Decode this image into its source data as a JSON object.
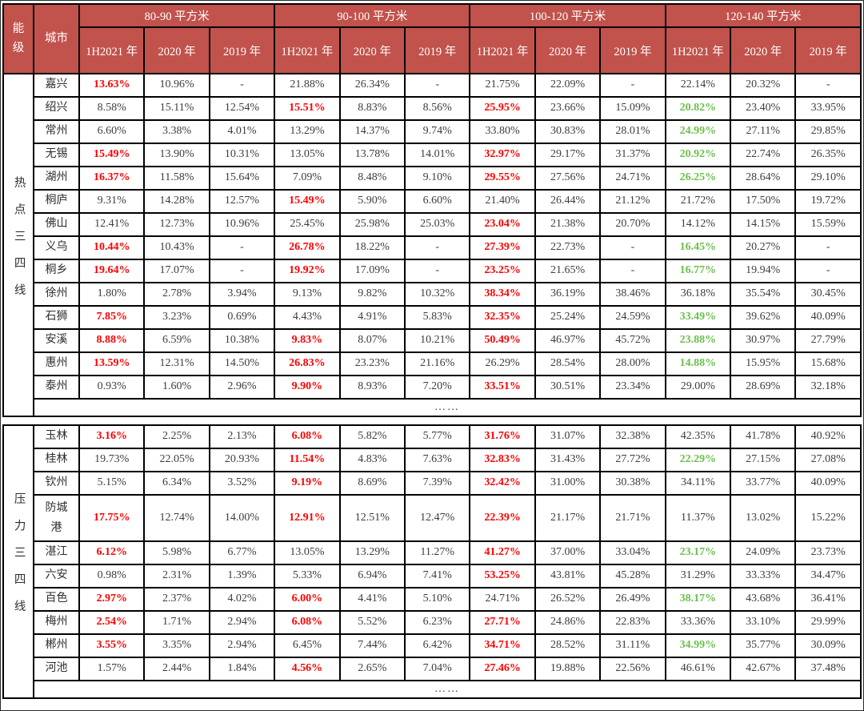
{
  "table": {
    "corner": {
      "tier": "能级",
      "city": "城市"
    },
    "groups": [
      "80-90 平方米",
      "90-100 平方米",
      "100-120 平方米",
      "120-140 平方米"
    ],
    "years": [
      "1H2021 年",
      "2020 年",
      "2019 年"
    ],
    "colors": {
      "header_bg": "#C1524C",
      "header_text": "#FFFFFF",
      "highlight_red": "#FE0000",
      "highlight_green": "#6CBE4B",
      "body_text": "#3D3D3D",
      "border": "#000000"
    },
    "sections": [
      {
        "tier": "热点三四线",
        "ellipsis": "……",
        "rows": [
          {
            "city": "嘉兴",
            "values": [
              "13.63%",
              "10.96%",
              "-",
              "21.88%",
              "26.34%",
              "-",
              "21.75%",
              "22.09%",
              "-",
              "22.14%",
              "20.32%",
              "-"
            ],
            "flags": [
              "r",
              "",
              "",
              "",
              "",
              "",
              "",
              "",
              "",
              "",
              "",
              ""
            ]
          },
          {
            "city": "绍兴",
            "values": [
              "8.58%",
              "15.11%",
              "12.54%",
              "15.51%",
              "8.83%",
              "8.56%",
              "25.95%",
              "23.66%",
              "15.09%",
              "20.82%",
              "23.40%",
              "33.95%"
            ],
            "flags": [
              "",
              "",
              "",
              "r",
              "",
              "",
              "r",
              "",
              "",
              "g",
              "",
              ""
            ]
          },
          {
            "city": "常州",
            "values": [
              "6.60%",
              "3.38%",
              "4.01%",
              "13.29%",
              "14.37%",
              "9.74%",
              "33.80%",
              "30.83%",
              "28.01%",
              "24.99%",
              "27.11%",
              "29.85%"
            ],
            "flags": [
              "",
              "",
              "",
              "",
              "",
              "",
              "",
              "",
              "",
              "g",
              "",
              ""
            ]
          },
          {
            "city": "无锡",
            "values": [
              "15.49%",
              "13.90%",
              "10.31%",
              "13.05%",
              "13.78%",
              "14.01%",
              "32.97%",
              "29.17%",
              "31.37%",
              "20.92%",
              "22.74%",
              "26.35%"
            ],
            "flags": [
              "r",
              "",
              "",
              "",
              "",
              "",
              "r",
              "",
              "",
              "g",
              "",
              ""
            ]
          },
          {
            "city": "湖州",
            "values": [
              "16.37%",
              "11.58%",
              "15.64%",
              "7.09%",
              "8.48%",
              "9.10%",
              "29.55%",
              "27.56%",
              "24.71%",
              "26.25%",
              "28.64%",
              "29.10%"
            ],
            "flags": [
              "r",
              "",
              "",
              "",
              "",
              "",
              "r",
              "",
              "",
              "g",
              "",
              ""
            ]
          },
          {
            "city": "桐庐",
            "values": [
              "9.31%",
              "14.28%",
              "12.57%",
              "15.49%",
              "5.90%",
              "6.60%",
              "21.40%",
              "26.44%",
              "21.12%",
              "21.72%",
              "17.50%",
              "19.72%"
            ],
            "flags": [
              "",
              "",
              "",
              "r",
              "",
              "",
              "",
              "",
              "",
              "",
              "",
              ""
            ]
          },
          {
            "city": "佛山",
            "values": [
              "12.41%",
              "12.73%",
              "10.96%",
              "25.45%",
              "25.98%",
              "25.03%",
              "23.04%",
              "21.38%",
              "20.70%",
              "14.12%",
              "14.15%",
              "15.59%"
            ],
            "flags": [
              "",
              "",
              "",
              "",
              "",
              "",
              "r",
              "",
              "",
              "",
              "",
              ""
            ]
          },
          {
            "city": "义乌",
            "values": [
              "10.44%",
              "10.43%",
              "-",
              "26.78%",
              "18.22%",
              "-",
              "27.39%",
              "22.73%",
              "-",
              "16.45%",
              "20.27%",
              "-"
            ],
            "flags": [
              "r",
              "",
              "",
              "r",
              "",
              "",
              "r",
              "",
              "",
              "g",
              "",
              ""
            ]
          },
          {
            "city": "桐乡",
            "values": [
              "19.64%",
              "17.07%",
              "-",
              "19.92%",
              "17.09%",
              "-",
              "23.25%",
              "21.65%",
              "-",
              "16.77%",
              "19.94%",
              "-"
            ],
            "flags": [
              "r",
              "",
              "",
              "r",
              "",
              "",
              "r",
              "",
              "",
              "g",
              "",
              ""
            ]
          },
          {
            "city": "徐州",
            "values": [
              "1.80%",
              "2.78%",
              "3.94%",
              "9.13%",
              "9.82%",
              "10.32%",
              "38.34%",
              "36.19%",
              "38.46%",
              "36.18%",
              "35.54%",
              "30.45%"
            ],
            "flags": [
              "",
              "",
              "",
              "",
              "",
              "",
              "r",
              "",
              "",
              "",
              "",
              ""
            ]
          },
          {
            "city": "石狮",
            "values": [
              "7.85%",
              "3.23%",
              "0.69%",
              "4.43%",
              "4.91%",
              "5.83%",
              "32.35%",
              "25.24%",
              "24.59%",
              "33.49%",
              "39.62%",
              "40.09%"
            ],
            "flags": [
              "r",
              "",
              "",
              "",
              "",
              "",
              "r",
              "",
              "",
              "g",
              "",
              ""
            ]
          },
          {
            "city": "安溪",
            "values": [
              "8.88%",
              "6.59%",
              "10.38%",
              "9.83%",
              "8.07%",
              "10.21%",
              "50.49%",
              "46.97%",
              "45.72%",
              "23.88%",
              "30.97%",
              "27.79%"
            ],
            "flags": [
              "r",
              "",
              "",
              "r",
              "",
              "",
              "r",
              "",
              "",
              "g",
              "",
              ""
            ]
          },
          {
            "city": "惠州",
            "values": [
              "13.59%",
              "12.31%",
              "14.50%",
              "26.83%",
              "23.23%",
              "21.16%",
              "26.29%",
              "28.54%",
              "28.00%",
              "14.88%",
              "15.95%",
              "15.68%"
            ],
            "flags": [
              "r",
              "",
              "",
              "r",
              "",
              "",
              "",
              "",
              "",
              "g",
              "",
              ""
            ]
          },
          {
            "city": "泰州",
            "values": [
              "0.93%",
              "1.60%",
              "2.96%",
              "9.90%",
              "8.93%",
              "7.20%",
              "33.51%",
              "30.51%",
              "23.34%",
              "29.00%",
              "28.69%",
              "32.18%"
            ],
            "flags": [
              "",
              "",
              "",
              "r",
              "",
              "",
              "r",
              "",
              "",
              "",
              "",
              ""
            ]
          }
        ]
      },
      {
        "tier": "压力三四线",
        "ellipsis": "……",
        "rows": [
          {
            "city": "玉林",
            "values": [
              "3.16%",
              "2.25%",
              "2.13%",
              "6.08%",
              "5.82%",
              "5.77%",
              "31.76%",
              "31.07%",
              "32.38%",
              "42.35%",
              "41.78%",
              "40.92%"
            ],
            "flags": [
              "r",
              "",
              "",
              "r",
              "",
              "",
              "r",
              "",
              "",
              "",
              "",
              ""
            ]
          },
          {
            "city": "桂林",
            "values": [
              "19.73%",
              "22.05%",
              "20.93%",
              "11.54%",
              "4.83%",
              "7.63%",
              "32.83%",
              "31.43%",
              "27.72%",
              "22.29%",
              "27.15%",
              "27.08%"
            ],
            "flags": [
              "",
              "",
              "",
              "r",
              "",
              "",
              "r",
              "",
              "",
              "g",
              "",
              ""
            ]
          },
          {
            "city": "钦州",
            "values": [
              "5.15%",
              "6.34%",
              "3.52%",
              "9.19%",
              "8.69%",
              "7.39%",
              "32.42%",
              "31.00%",
              "30.38%",
              "34.11%",
              "33.77%",
              "40.09%"
            ],
            "flags": [
              "",
              "",
              "",
              "r",
              "",
              "",
              "r",
              "",
              "",
              "",
              "",
              ""
            ]
          },
          {
            "city": "防城港",
            "tall": true,
            "values": [
              "17.75%",
              "12.74%",
              "14.00%",
              "12.91%",
              "12.51%",
              "12.47%",
              "22.39%",
              "21.17%",
              "21.71%",
              "11.37%",
              "13.02%",
              "15.22%"
            ],
            "flags": [
              "r",
              "",
              "",
              "r",
              "",
              "",
              "r",
              "",
              "",
              "",
              "",
              ""
            ]
          },
          {
            "city": "湛江",
            "values": [
              "6.12%",
              "5.98%",
              "6.77%",
              "13.05%",
              "13.29%",
              "11.27%",
              "41.27%",
              "37.00%",
              "33.04%",
              "23.17%",
              "24.09%",
              "23.73%"
            ],
            "flags": [
              "r",
              "",
              "",
              "",
              "",
              "",
              "r",
              "",
              "",
              "g",
              "",
              ""
            ]
          },
          {
            "city": "六安",
            "values": [
              "0.98%",
              "2.31%",
              "1.39%",
              "5.33%",
              "6.94%",
              "7.41%",
              "53.25%",
              "43.81%",
              "45.28%",
              "31.29%",
              "33.33%",
              "34.47%"
            ],
            "flags": [
              "",
              "",
              "",
              "",
              "",
              "",
              "r",
              "",
              "",
              "",
              "",
              ""
            ]
          },
          {
            "city": "百色",
            "values": [
              "2.97%",
              "2.37%",
              "4.02%",
              "6.00%",
              "4.41%",
              "5.10%",
              "24.71%",
              "26.52%",
              "26.49%",
              "38.17%",
              "43.68%",
              "36.41%"
            ],
            "flags": [
              "r",
              "",
              "",
              "r",
              "",
              "",
              "",
              "",
              "",
              "g",
              "",
              ""
            ]
          },
          {
            "city": "梅州",
            "values": [
              "2.54%",
              "1.71%",
              "2.94%",
              "6.08%",
              "5.52%",
              "6.23%",
              "27.71%",
              "24.86%",
              "22.83%",
              "33.36%",
              "33.10%",
              "29.99%"
            ],
            "flags": [
              "r",
              "",
              "",
              "r",
              "",
              "",
              "r",
              "",
              "",
              "",
              "",
              ""
            ]
          },
          {
            "city": "郴州",
            "values": [
              "3.55%",
              "3.35%",
              "2.94%",
              "6.45%",
              "7.44%",
              "6.42%",
              "34.71%",
              "28.52%",
              "31.11%",
              "34.99%",
              "35.77%",
              "30.09%"
            ],
            "flags": [
              "r",
              "",
              "",
              "",
              "",
              "",
              "r",
              "",
              "",
              "g",
              "",
              ""
            ]
          },
          {
            "city": "河池",
            "values": [
              "1.57%",
              "2.44%",
              "1.84%",
              "4.56%",
              "2.65%",
              "7.04%",
              "27.46%",
              "19.88%",
              "22.56%",
              "46.61%",
              "42.67%",
              "37.48%"
            ],
            "flags": [
              "",
              "",
              "",
              "r",
              "",
              "",
              "r",
              "",
              "",
              "",
              "",
              ""
            ]
          }
        ]
      }
    ]
  }
}
